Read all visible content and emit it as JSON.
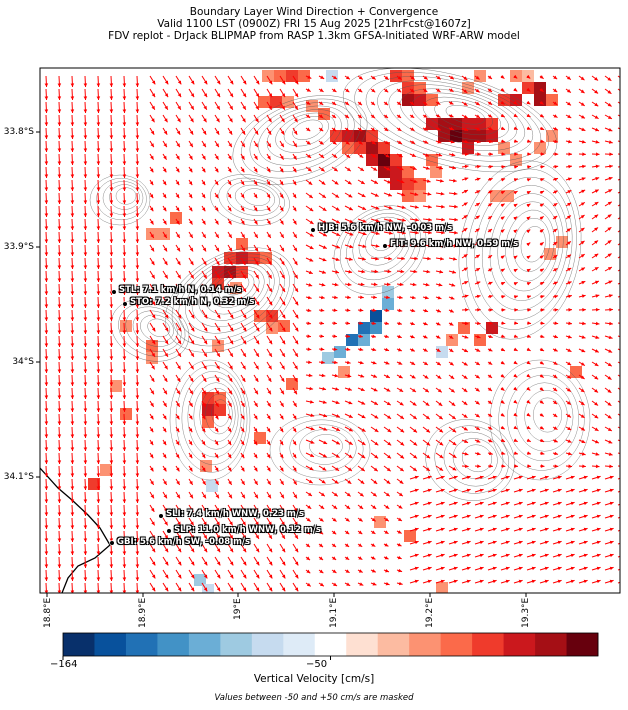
{
  "title": {
    "line1": "Boundary Layer Wind Direction + Convergence",
    "line2": "Valid 1100 LST (0900Z) FRI 15 Aug 2025 [21hrFcst@1607z]",
    "line3": "FDV replot - DrJack BLIPMAP from RASP 1.3km GFSA-Initiated WRF-ARW model"
  },
  "axes": {
    "lat_labels": [
      "33.8°S",
      "33.9°S",
      "34°S",
      "34.1°S"
    ],
    "lon_labels": [
      "18.8°E",
      "18.9°E",
      "19°E",
      "19.1°E",
      "19.2°E",
      "19.3°E"
    ]
  },
  "stations": [
    {
      "id": "HJB",
      "label": "HJB: 5.6 km/h NW, -0.03 m/s"
    },
    {
      "id": "FIT",
      "label": "FIT: 9.6 km/h NW, 0.59 m/s"
    },
    {
      "id": "STL",
      "label": "STL: 7.1 km/h N, 0.14 m/s"
    },
    {
      "id": "STO",
      "label": "STO: 7.2 km/h N, 0.32 m/s"
    },
    {
      "id": "SLI",
      "label": "SLI: 7.4 km/h WNW, 0.23 m/s"
    },
    {
      "id": "SLP",
      "label": "SLP: 11.0 km/h WNW, 0.12 m/s"
    },
    {
      "id": "GBI",
      "label": "GBI: 5.6 km/h SW, -0.08 m/s"
    }
  ],
  "colorbar": {
    "min_label": "−164",
    "mid_label": "−50",
    "title": "Vertical Velocity [cm/s]",
    "colors": [
      "#08306b",
      "#08519c",
      "#2171b5",
      "#4292c6",
      "#6baed6",
      "#9ecae1",
      "#c6dbef",
      "#deebf7",
      "#ffffff",
      "#fee0d2",
      "#fcbba1",
      "#fc9272",
      "#fb6a4a",
      "#ef3b2c",
      "#cb181d",
      "#a50f15",
      "#67000d"
    ]
  },
  "note": "Values between -50 and +50 cm/s are masked",
  "arrow_color": "#ff0000",
  "contour_color": "#555555"
}
